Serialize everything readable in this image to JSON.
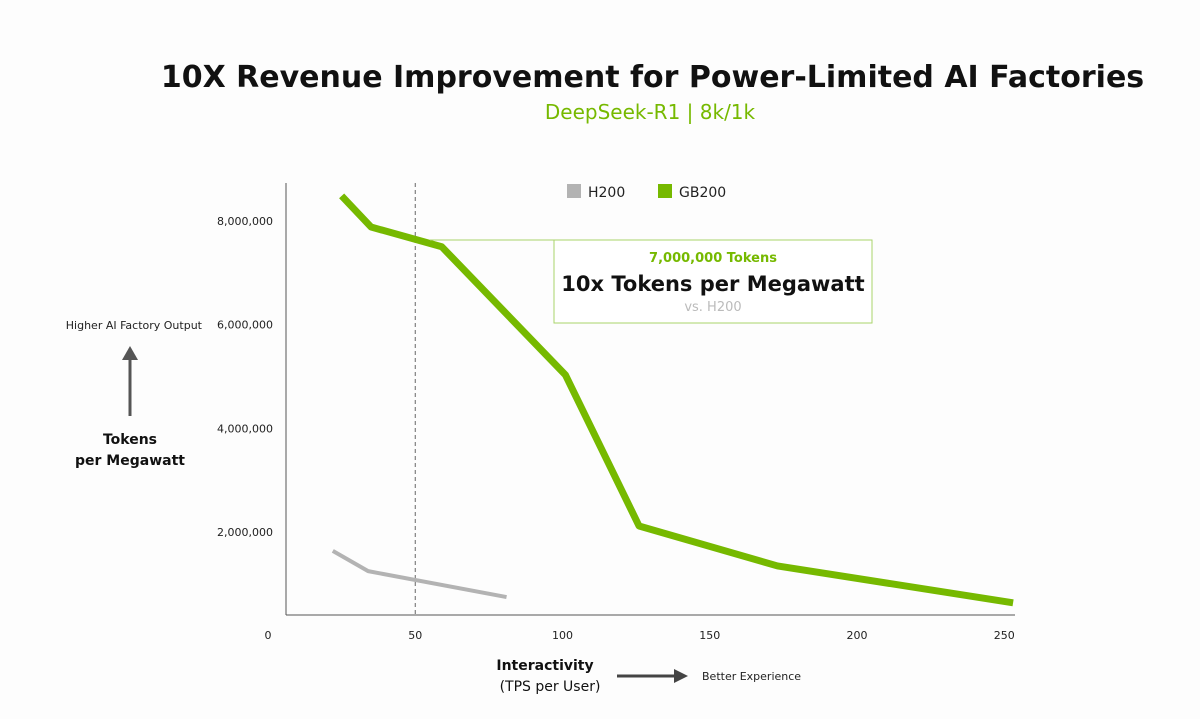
{
  "chart_data": {
    "type": "line",
    "title": "10X Revenue Improvement for Power-Limited AI Factories",
    "subtitle": "DeepSeek-R1 | 8k/1k",
    "xlabel": "Interactivity",
    "xlabel_sub": "(TPS per User)",
    "x_hint": "Better Experience",
    "ylabel": "Tokens per Megawatt",
    "y_hint": "Higher AI Factory Output",
    "xlim": [
      0,
      250
    ],
    "ylim": [
      0,
      8000000
    ],
    "xticks": [
      0,
      50,
      100,
      150,
      200,
      250
    ],
    "xtick_labels": [
      "0",
      "50",
      "100",
      "150",
      "200",
      "250"
    ],
    "yticks": [
      2000000,
      4000000,
      6000000,
      8000000
    ],
    "ytick_labels": [
      "2,000,000",
      "4,000,000",
      "6,000,000",
      "8,000,000"
    ],
    "legend_position": "top-center",
    "series": [
      {
        "name": "H200",
        "color": "#b3b3b3",
        "x": [
          22,
          34,
          81
        ],
        "y": [
          1640000,
          1250000,
          750000
        ]
      },
      {
        "name": "GB200",
        "color": "#76b900",
        "x": [
          25,
          35,
          59,
          101,
          126,
          173,
          253
        ],
        "y": [
          8480000,
          7880000,
          7500000,
          5030000,
          2120000,
          1350000,
          640000
        ]
      }
    ],
    "reference_line_x": 50,
    "annotation": {
      "value": "7,000,000 Tokens",
      "headline": "10x Tokens per Megawatt",
      "comparison": "vs. H200"
    }
  }
}
